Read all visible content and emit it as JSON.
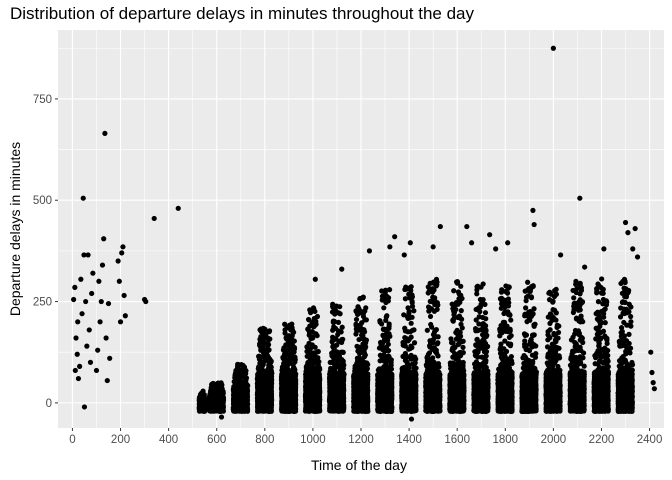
{
  "chart_data": {
    "type": "scatter",
    "title": "Distribution of departure delays in minutes throughout the day",
    "xlabel": "Time of the day",
    "ylabel": "Departure delays in minutes",
    "xlim": [
      -60,
      2460
    ],
    "ylim": [
      -62,
      920
    ],
    "x_ticks": [
      0,
      200,
      400,
      600,
      800,
      1000,
      1200,
      1400,
      1600,
      1800,
      2000,
      2200,
      2400
    ],
    "x_tick_labels": [
      "0",
      "200",
      "400",
      "600",
      "800",
      "1000",
      "1200",
      "1400",
      "1600",
      "1800",
      "2000",
      "2200",
      "2400"
    ],
    "y_ticks": [
      0,
      250,
      500,
      750
    ],
    "y_tick_labels": [
      "0",
      "250",
      "500",
      "750"
    ],
    "grid": true,
    "legend": "none",
    "colors": {
      "panel": "#ebebeb",
      "grid": "#ffffff",
      "points": "#000000"
    },
    "series": [
      {
        "points": [
          [
            5,
            255
          ],
          [
            10,
            285
          ],
          [
            12,
            80
          ],
          [
            15,
            160
          ],
          [
            20,
            120
          ],
          [
            22,
            200
          ],
          [
            25,
            60
          ],
          [
            30,
            90
          ],
          [
            35,
            305
          ],
          [
            40,
            220
          ],
          [
            45,
            505
          ],
          [
            48,
            365
          ],
          [
            50,
            -10
          ],
          [
            55,
            250
          ],
          [
            60,
            140
          ],
          [
            65,
            365
          ],
          [
            70,
            180
          ],
          [
            75,
            100
          ],
          [
            80,
            270
          ],
          [
            85,
            320
          ],
          [
            100,
            80
          ],
          [
            105,
            130
          ],
          [
            110,
            300
          ],
          [
            115,
            200
          ],
          [
            120,
            250
          ],
          [
            125,
            340
          ],
          [
            130,
            405
          ],
          [
            135,
            665
          ],
          [
            140,
            160
          ],
          [
            145,
            55
          ],
          [
            150,
            245
          ],
          [
            155,
            110
          ],
          [
            190,
            350
          ],
          [
            195,
            300
          ],
          [
            200,
            200
          ],
          [
            205,
            370
          ],
          [
            210,
            385
          ],
          [
            215,
            265
          ],
          [
            220,
            215
          ],
          [
            300,
            255
          ],
          [
            305,
            250
          ],
          [
            340,
            455
          ],
          [
            440,
            480
          ],
          [
            1010,
            305
          ],
          [
            1120,
            330
          ],
          [
            1235,
            375
          ],
          [
            1320,
            385
          ],
          [
            1340,
            410
          ],
          [
            1380,
            365
          ],
          [
            1405,
            395
          ],
          [
            1500,
            385
          ],
          [
            1530,
            435
          ],
          [
            1640,
            435
          ],
          [
            1660,
            395
          ],
          [
            1735,
            415
          ],
          [
            1760,
            380
          ],
          [
            1810,
            395
          ],
          [
            1915,
            475
          ],
          [
            1920,
            440
          ],
          [
            2000,
            875
          ],
          [
            2110,
            505
          ],
          [
            2030,
            365
          ],
          [
            2130,
            335
          ],
          [
            2210,
            380
          ],
          [
            2300,
            445
          ],
          [
            2310,
            420
          ],
          [
            2330,
            380
          ],
          [
            2340,
            430
          ],
          [
            2350,
            360
          ],
          [
            2405,
            125
          ],
          [
            2410,
            75
          ],
          [
            2415,
            50
          ],
          [
            2420,
            35
          ],
          [
            1410,
            -40
          ],
          [
            620,
            -35
          ]
        ]
      }
    ],
    "dense_bands": [
      {
        "x": 540,
        "max": 30
      },
      {
        "x": 600,
        "max": 50
      },
      {
        "x": 700,
        "max": 95
      },
      {
        "x": 800,
        "max": 185
      },
      {
        "x": 900,
        "max": 195
      },
      {
        "x": 1000,
        "max": 245
      },
      {
        "x": 1100,
        "max": 245
      },
      {
        "x": 1200,
        "max": 265
      },
      {
        "x": 1300,
        "max": 280
      },
      {
        "x": 1400,
        "max": 290
      },
      {
        "x": 1500,
        "max": 305
      },
      {
        "x": 1600,
        "max": 300
      },
      {
        "x": 1700,
        "max": 295
      },
      {
        "x": 1800,
        "max": 290
      },
      {
        "x": 1900,
        "max": 300
      },
      {
        "x": 2000,
        "max": 285
      },
      {
        "x": 2100,
        "max": 300
      },
      {
        "x": 2200,
        "max": 310
      },
      {
        "x": 2300,
        "max": 310
      }
    ]
  }
}
